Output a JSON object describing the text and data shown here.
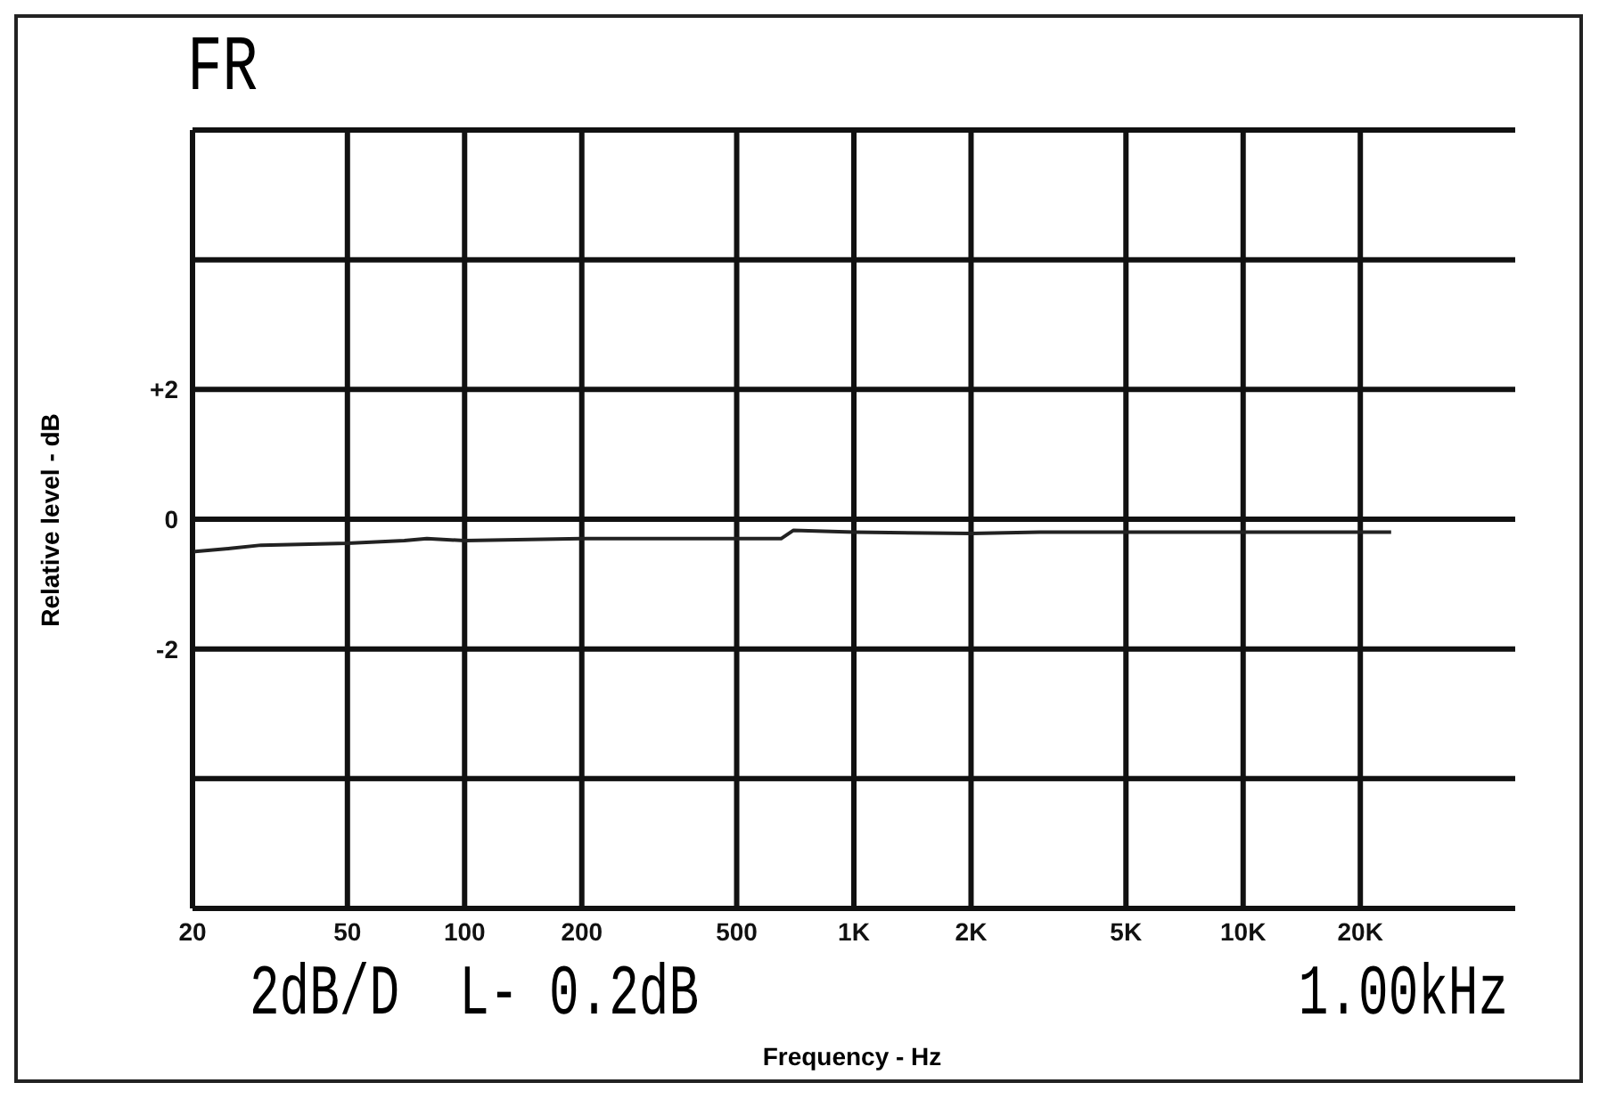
{
  "chart_data": {
    "type": "line",
    "title": "FR",
    "xlabel": "Frequency - Hz",
    "ylabel": "Relative level - dB",
    "annotations": [
      "2dB/D  L- 0.2dB",
      "1.00kHz"
    ],
    "log": "x",
    "grid": true,
    "marker": "none",
    "line_style": "solid",
    "xlim": [
      20,
      50000
    ],
    "xticks": [
      20,
      50,
      100,
      200,
      500,
      {
        "value": 1000,
        "label": "1K"
      },
      {
        "value": 2000,
        "label": "2K"
      },
      {
        "value": 5000,
        "label": "5K"
      },
      {
        "value": 10000,
        "label": "10K"
      },
      {
        "value": 20000,
        "label": "20K"
      }
    ],
    "ylim": [
      -6,
      6
    ],
    "yticks": [
      {
        "value": -6,
        "label": null
      },
      {
        "value": -4,
        "label": null
      },
      -2,
      0,
      {
        "value": 2,
        "label": "+2"
      },
      {
        "value": 4,
        "label": null
      },
      {
        "value": 6,
        "label": null
      }
    ],
    "x": [
      20,
      25,
      30,
      50,
      70,
      80,
      100,
      200,
      500,
      650,
      700,
      1000,
      2000,
      3000,
      5000,
      10000,
      24000
    ],
    "series": [
      {
        "color": "#222222",
        "values": [
          -0.5,
          -0.45,
          -0.4,
          -0.37,
          -0.33,
          -0.3,
          -0.33,
          -0.3,
          -0.3,
          -0.3,
          -0.17,
          -0.2,
          -0.22,
          -0.2,
          -0.2,
          -0.2,
          -0.2
        ]
      }
    ]
  }
}
